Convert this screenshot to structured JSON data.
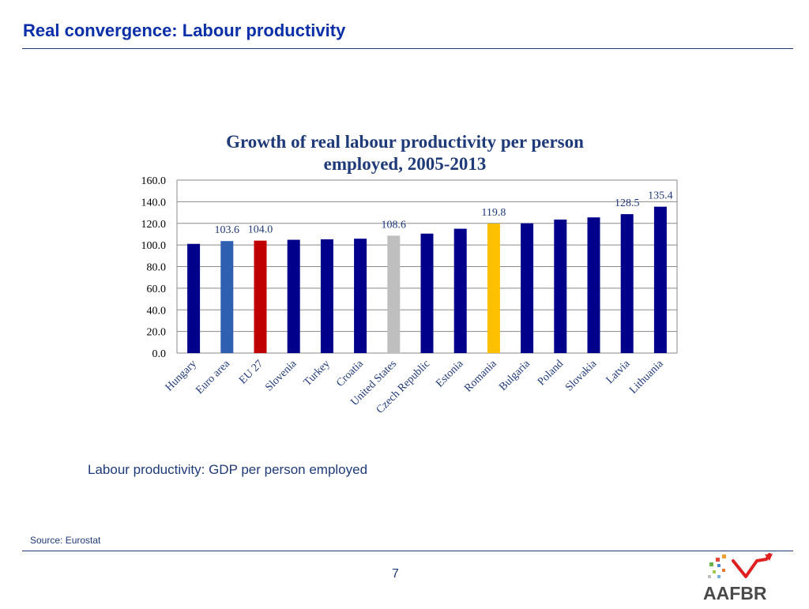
{
  "slide": {
    "title": "Real convergence: Labour productivity",
    "caption": "Labour productivity: GDP per person employed",
    "source": "Source: Eurostat",
    "page_number": "7",
    "logo_text": "AAFBR"
  },
  "colors": {
    "title": "#0a2fa8",
    "text": "#1f3a78",
    "bar_default": "#00008b",
    "euro_area": "#2e5fb0",
    "eu27": "#c00000",
    "united_states": "#bfbfbf",
    "romania": "#ffc000"
  },
  "chart_data": {
    "type": "bar",
    "title": "Growth of real labour productivity per person employed, 2005-2013",
    "title_lines": [
      "Growth of real labour productivity per person",
      "employed, 2005-2013"
    ],
    "categories": [
      "Hungary",
      "Euro area",
      "EU 27",
      "Slovenia",
      "Turkey",
      "Croatia",
      "United States",
      "Czech Republic",
      "Estonia",
      "Romania",
      "Bulgaria",
      "Poland",
      "Slovakia",
      "Latvia",
      "Lithuania"
    ],
    "values": [
      101.0,
      103.6,
      104.0,
      104.8,
      105.2,
      105.8,
      108.6,
      110.5,
      115.0,
      119.8,
      120.0,
      123.5,
      125.5,
      128.5,
      135.4
    ],
    "bar_colors": [
      "#00008b",
      "#2e5fb0",
      "#c00000",
      "#00008b",
      "#00008b",
      "#00008b",
      "#bfbfbf",
      "#00008b",
      "#00008b",
      "#ffc000",
      "#00008b",
      "#00008b",
      "#00008b",
      "#00008b",
      "#00008b"
    ],
    "data_labels": [
      {
        "index": 1,
        "text": "103.6"
      },
      {
        "index": 2,
        "text": "104.0"
      },
      {
        "index": 6,
        "text": "108.6"
      },
      {
        "index": 9,
        "text": "119.8"
      },
      {
        "index": 13,
        "text": "128.5"
      },
      {
        "index": 14,
        "text": "135.4"
      }
    ],
    "ylim": [
      0,
      160
    ],
    "yticks": [
      "0.0",
      "20.0",
      "40.0",
      "60.0",
      "80.0",
      "100.0",
      "120.0",
      "140.0",
      "160.0"
    ],
    "grid": true,
    "xlabel": "",
    "ylabel": ""
  }
}
